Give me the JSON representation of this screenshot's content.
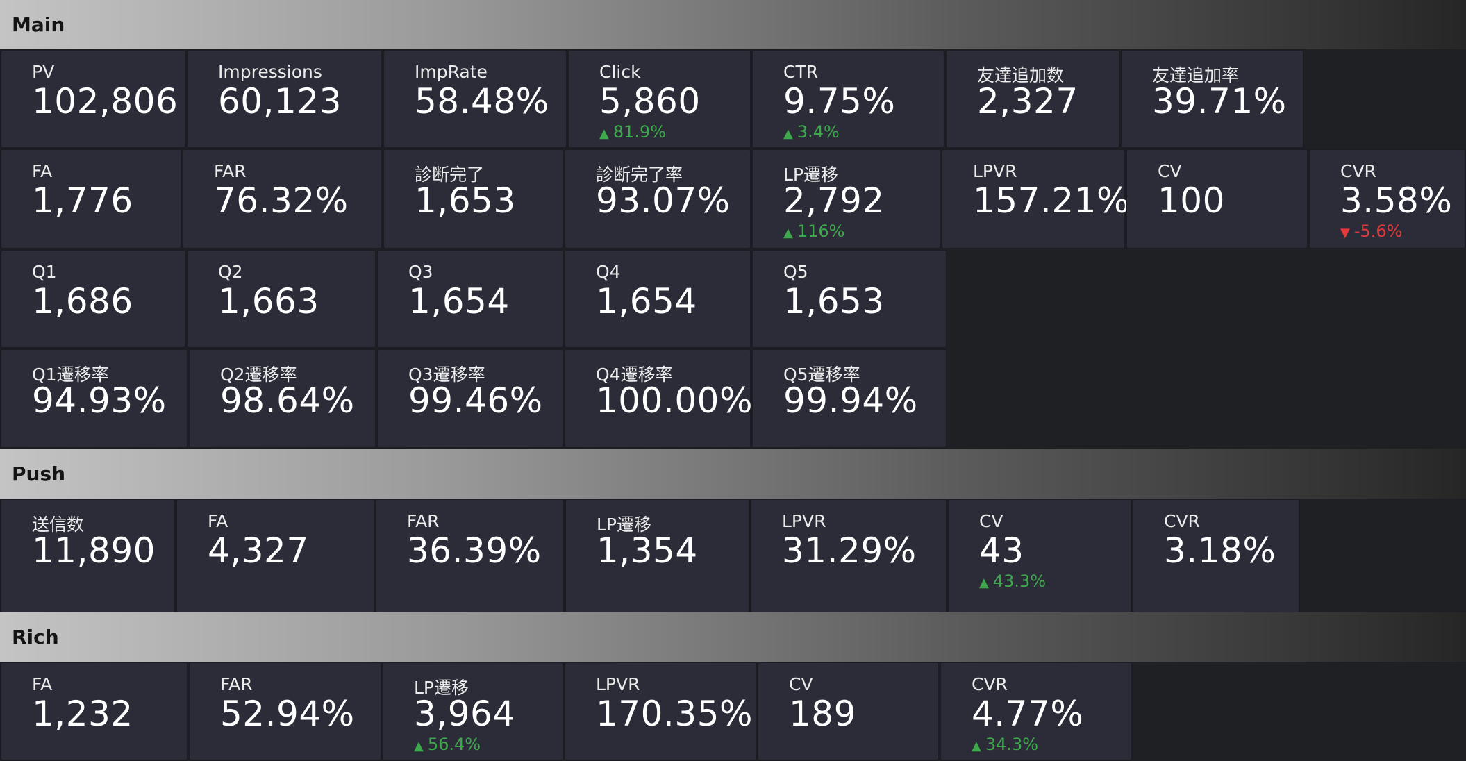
{
  "colors": {
    "tile_bg": "#2b2c38",
    "page_bg": "#1f2024",
    "up": "#3ea94c",
    "down": "#e03b3b"
  },
  "icons": {
    "up": "arrow-up-icon",
    "down": "arrow-down-icon"
  },
  "sections": [
    {
      "title": "Main",
      "rows": [
        [
          {
            "label": "PV",
            "value": "102,806"
          },
          {
            "label": "Impressions",
            "value": "60,123"
          },
          {
            "label": "ImpRate",
            "value": "58.48%"
          },
          {
            "label": "Click",
            "value": "5,860",
            "delta": "81.9%",
            "trend": "up"
          },
          {
            "label": "CTR",
            "value": "9.75%",
            "delta": "3.4%",
            "trend": "up"
          },
          {
            "label": "友達追加数",
            "value": "2,327"
          },
          {
            "label": "友達追加率",
            "value": "39.71%"
          }
        ],
        [
          {
            "label": "FA",
            "value": "1,776"
          },
          {
            "label": "FAR",
            "value": "76.32%"
          },
          {
            "label": "診断完了",
            "value": "1,653"
          },
          {
            "label": "診断完了率",
            "value": "93.07%"
          },
          {
            "label": "LP遷移",
            "value": "2,792",
            "delta": "116%",
            "trend": "up"
          },
          {
            "label": "LPVR",
            "value": "157.21%"
          },
          {
            "label": "CV",
            "value": "100"
          },
          {
            "label": "CVR",
            "value": "3.58%",
            "delta": "-5.6%",
            "trend": "down"
          }
        ],
        [
          {
            "label": "Q1",
            "value": "1,686"
          },
          {
            "label": "Q2",
            "value": "1,663"
          },
          {
            "label": "Q3",
            "value": "1,654"
          },
          {
            "label": "Q4",
            "value": "1,654"
          },
          {
            "label": "Q5",
            "value": "1,653"
          }
        ],
        [
          {
            "label": "Q1遷移率",
            "value": "94.93%"
          },
          {
            "label": "Q2遷移率",
            "value": "98.64%"
          },
          {
            "label": "Q3遷移率",
            "value": "99.46%"
          },
          {
            "label": "Q4遷移率",
            "value": "100.00%"
          },
          {
            "label": "Q5遷移率",
            "value": "99.94%"
          }
        ]
      ]
    },
    {
      "title": "Push",
      "rows": [
        [
          {
            "label": "送信数",
            "value": "11,890"
          },
          {
            "label": "FA",
            "value": "4,327"
          },
          {
            "label": "FAR",
            "value": "36.39%"
          },
          {
            "label": "LP遷移",
            "value": "1,354"
          },
          {
            "label": "LPVR",
            "value": "31.29%"
          },
          {
            "label": "CV",
            "value": "43",
            "delta": "43.3%",
            "trend": "up"
          },
          {
            "label": "CVR",
            "value": "3.18%"
          }
        ]
      ]
    },
    {
      "title": "Rich",
      "rows": [
        [
          {
            "label": "FA",
            "value": "1,232"
          },
          {
            "label": "FAR",
            "value": "52.94%"
          },
          {
            "label": "LP遷移",
            "value": "3,964",
            "delta": "56.4%",
            "trend": "up"
          },
          {
            "label": "LPVR",
            "value": "170.35%"
          },
          {
            "label": "CV",
            "value": "189"
          },
          {
            "label": "CVR",
            "value": "4.77%",
            "delta": "34.3%",
            "trend": "up"
          }
        ]
      ]
    }
  ]
}
